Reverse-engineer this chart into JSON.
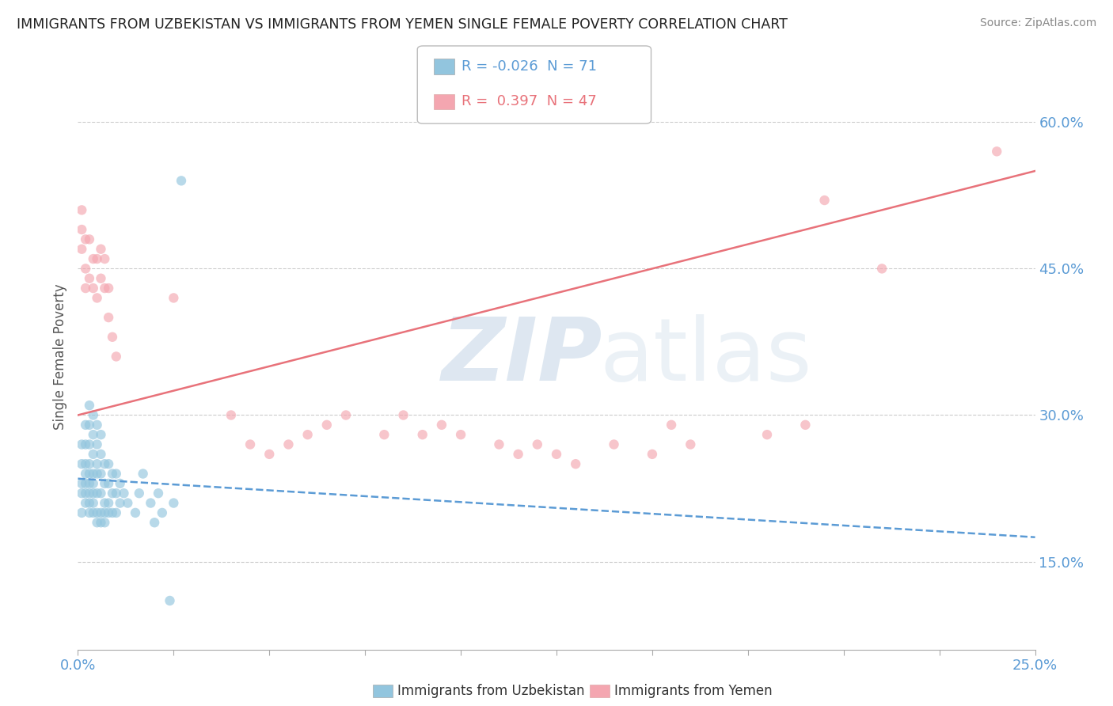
{
  "title": "IMMIGRANTS FROM UZBEKISTAN VS IMMIGRANTS FROM YEMEN SINGLE FEMALE POVERTY CORRELATION CHART",
  "source": "Source: ZipAtlas.com",
  "ylabel": "Single Female Poverty",
  "right_yticks": [
    "15.0%",
    "30.0%",
    "45.0%",
    "60.0%"
  ],
  "right_ytick_vals": [
    0.15,
    0.3,
    0.45,
    0.6
  ],
  "xlim": [
    0.0,
    0.25
  ],
  "ylim": [
    0.06,
    0.66
  ],
  "legend_r1": "-0.026",
  "legend_n1": "71",
  "legend_r2": "0.397",
  "legend_n2": "47",
  "color_blue": "#92C5DE",
  "color_pink": "#F4A6B0",
  "color_blue_line": "#5B9BD5",
  "color_pink_line": "#E8727A",
  "color_blue_text": "#5B9BD5",
  "color_pink_text": "#E8727A",
  "blue_x": [
    0.001,
    0.001,
    0.001,
    0.001,
    0.001,
    0.002,
    0.002,
    0.002,
    0.002,
    0.002,
    0.002,
    0.002,
    0.003,
    0.003,
    0.003,
    0.003,
    0.003,
    0.003,
    0.003,
    0.003,
    0.003,
    0.004,
    0.004,
    0.004,
    0.004,
    0.004,
    0.004,
    0.004,
    0.004,
    0.005,
    0.005,
    0.005,
    0.005,
    0.005,
    0.005,
    0.005,
    0.006,
    0.006,
    0.006,
    0.006,
    0.006,
    0.006,
    0.007,
    0.007,
    0.007,
    0.007,
    0.007,
    0.008,
    0.008,
    0.008,
    0.008,
    0.009,
    0.009,
    0.009,
    0.01,
    0.01,
    0.01,
    0.011,
    0.011,
    0.012,
    0.013,
    0.015,
    0.016,
    0.017,
    0.019,
    0.02,
    0.021,
    0.022,
    0.024,
    0.025,
    0.027
  ],
  "blue_y": [
    0.2,
    0.22,
    0.23,
    0.25,
    0.27,
    0.21,
    0.22,
    0.23,
    0.24,
    0.25,
    0.27,
    0.29,
    0.2,
    0.21,
    0.22,
    0.23,
    0.24,
    0.25,
    0.27,
    0.29,
    0.31,
    0.2,
    0.21,
    0.22,
    0.23,
    0.24,
    0.26,
    0.28,
    0.3,
    0.19,
    0.2,
    0.22,
    0.24,
    0.25,
    0.27,
    0.29,
    0.19,
    0.2,
    0.22,
    0.24,
    0.26,
    0.28,
    0.19,
    0.2,
    0.21,
    0.23,
    0.25,
    0.2,
    0.21,
    0.23,
    0.25,
    0.2,
    0.22,
    0.24,
    0.2,
    0.22,
    0.24,
    0.21,
    0.23,
    0.22,
    0.21,
    0.2,
    0.22,
    0.24,
    0.21,
    0.19,
    0.22,
    0.2,
    0.11,
    0.21,
    0.54
  ],
  "pink_x": [
    0.001,
    0.001,
    0.001,
    0.002,
    0.002,
    0.002,
    0.003,
    0.003,
    0.004,
    0.004,
    0.005,
    0.005,
    0.006,
    0.006,
    0.007,
    0.007,
    0.008,
    0.008,
    0.009,
    0.01,
    0.025,
    0.04,
    0.045,
    0.05,
    0.055,
    0.06,
    0.065,
    0.07,
    0.08,
    0.085,
    0.09,
    0.095,
    0.1,
    0.11,
    0.115,
    0.12,
    0.125,
    0.13,
    0.14,
    0.15,
    0.155,
    0.16,
    0.18,
    0.19,
    0.195,
    0.21,
    0.24
  ],
  "pink_y": [
    0.47,
    0.49,
    0.51,
    0.43,
    0.45,
    0.48,
    0.44,
    0.48,
    0.43,
    0.46,
    0.42,
    0.46,
    0.44,
    0.47,
    0.43,
    0.46,
    0.4,
    0.43,
    0.38,
    0.36,
    0.42,
    0.3,
    0.27,
    0.26,
    0.27,
    0.28,
    0.29,
    0.3,
    0.28,
    0.3,
    0.28,
    0.29,
    0.28,
    0.27,
    0.26,
    0.27,
    0.26,
    0.25,
    0.27,
    0.26,
    0.29,
    0.27,
    0.28,
    0.29,
    0.52,
    0.45,
    0.57
  ]
}
